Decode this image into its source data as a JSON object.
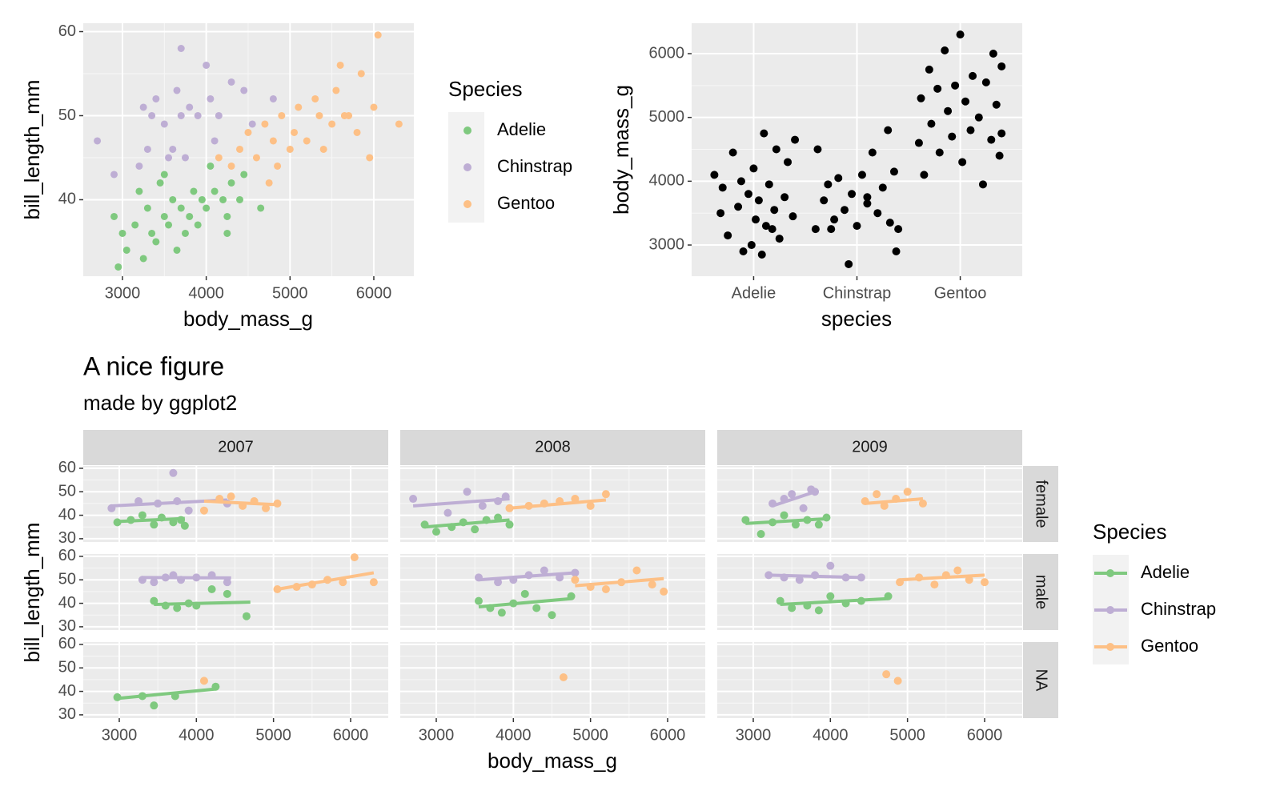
{
  "chart_data": [
    {
      "type": "scatter",
      "xlabel": "body_mass_g",
      "ylabel": "bill_length_mm",
      "legend_title": "Species",
      "xlim": [
        2532,
        6478
      ],
      "ylim": [
        30.9,
        61.0
      ],
      "xticks": [
        3000,
        4000,
        5000,
        6000
      ],
      "yticks": [
        40,
        50,
        60
      ],
      "grid": true,
      "series": [
        {
          "name": "Adelie",
          "color": "#7fc97f",
          "x": [
            2900,
            3000,
            3050,
            3150,
            3200,
            3300,
            3350,
            3400,
            3450,
            3500,
            3550,
            3600,
            3650,
            3700,
            3750,
            3800,
            3850,
            3900,
            3950,
            4000,
            4050,
            4100,
            4200,
            4250,
            4300,
            4400,
            4450,
            4650,
            3500,
            3250,
            2950,
            4250
          ],
          "y": [
            38,
            36,
            34,
            37,
            41,
            39,
            36,
            35,
            42,
            38,
            37,
            40,
            34,
            39,
            36,
            38,
            41,
            37,
            40,
            39,
            44,
            41,
            40,
            38,
            42,
            40,
            43,
            39,
            43,
            33,
            32,
            36
          ]
        },
        {
          "name": "Chinstrap",
          "color": "#beaed4",
          "x": [
            2700,
            2900,
            3250,
            3300,
            3400,
            3500,
            3600,
            3700,
            3700,
            3800,
            3750,
            3900,
            4000,
            4050,
            4150,
            4300,
            4450,
            4800,
            3350,
            3550,
            4550,
            3200,
            3650,
            4100
          ],
          "y": [
            47,
            43,
            51,
            46,
            52,
            49,
            46,
            58,
            50,
            51,
            45,
            50,
            56,
            52,
            50,
            54,
            53,
            52,
            50,
            45,
            49,
            44,
            53,
            47
          ]
        },
        {
          "name": "Gentoo",
          "color": "#fdc086",
          "x": [
            4150,
            4300,
            4400,
            4500,
            4600,
            4700,
            4750,
            4800,
            4900,
            5000,
            5050,
            5100,
            5200,
            5300,
            5350,
            5400,
            5500,
            5550,
            5600,
            5700,
            5800,
            5850,
            5950,
            6000,
            6050,
            6300,
            5650,
            4850
          ],
          "y": [
            45,
            44,
            46,
            48,
            45,
            49,
            42,
            47,
            50,
            46,
            48,
            51,
            47,
            52,
            50,
            46,
            49,
            53,
            56,
            50,
            48,
            55,
            45,
            51,
            59.6,
            49,
            50,
            44
          ]
        }
      ]
    },
    {
      "type": "jitter",
      "xlabel": "species",
      "ylabel": "body_mass_g",
      "categories": [
        "Adelie",
        "Chinstrap",
        "Gentoo"
      ],
      "xlim": [
        0.4,
        3.6
      ],
      "ylim": [
        2511,
        6477
      ],
      "yticks": [
        3000,
        4000,
        5000,
        6000
      ],
      "grid": true,
      "color": "#000000",
      "x": [
        0.62,
        0.7,
        0.75,
        0.8,
        0.85,
        0.9,
        0.95,
        1.0,
        1.02,
        1.05,
        1.08,
        1.1,
        1.12,
        1.15,
        1.2,
        1.22,
        1.25,
        1.3,
        1.33,
        1.38,
        1.4,
        0.68,
        0.88,
        1.18,
        0.98,
        1.6,
        1.62,
        1.68,
        1.72,
        1.78,
        1.82,
        1.88,
        1.92,
        1.95,
        2.0,
        2.05,
        2.1,
        2.15,
        2.2,
        2.25,
        2.3,
        2.32,
        2.36,
        2.4,
        2.38,
        2.1,
        1.75,
        2.6,
        2.62,
        2.65,
        2.7,
        2.72,
        2.78,
        2.8,
        2.85,
        2.88,
        2.92,
        2.95,
        3.0,
        3.02,
        3.05,
        3.1,
        3.12,
        3.18,
        3.22,
        3.25,
        3.3,
        3.32,
        3.35,
        3.38,
        3.4,
        3.4
      ],
      "y": [
        4100,
        3900,
        3150,
        4450,
        3600,
        2900,
        3800,
        4200,
        3400,
        3700,
        2850,
        4750,
        3300,
        3950,
        3550,
        4500,
        3100,
        3750,
        4300,
        3450,
        4650,
        3500,
        4000,
        3250,
        3000,
        3250,
        4500,
        3700,
        3950,
        3400,
        4050,
        3550,
        2700,
        3800,
        3300,
        4100,
        3650,
        4450,
        3500,
        3900,
        4800,
        3350,
        4150,
        3250,
        2900,
        3750,
        3250,
        4600,
        5300,
        4100,
        5750,
        4900,
        5450,
        4450,
        6050,
        5100,
        4700,
        5500,
        6300,
        4300,
        5250,
        4800,
        5650,
        5000,
        3950,
        5550,
        4650,
        6000,
        5200,
        4400,
        5800,
        4750
      ]
    },
    {
      "type": "facet_scatter",
      "title": "A nice figure",
      "subtitle": "made by ggplot2",
      "xlabel": "body_mass_g",
      "ylabel": "bill_length_mm",
      "legend_title": "Species",
      "cols": [
        "2007",
        "2008",
        "2009"
      ],
      "rows": [
        "female",
        "male",
        "NA"
      ],
      "xlim": [
        2533,
        6488
      ],
      "ylim": [
        28.6,
        61.0
      ],
      "xticks": [
        3000,
        4000,
        5000,
        6000
      ],
      "yticks": [
        30,
        40,
        50,
        60
      ],
      "grid": true,
      "series": [
        {
          "name": "Adelie",
          "color": "#7fc97f"
        },
        {
          "name": "Chinstrap",
          "color": "#beaed4"
        },
        {
          "name": "Gentoo",
          "color": "#fdc086"
        }
      ],
      "panels": [
        [
          [
            {
              "x": [
                2975,
                3150,
                3300,
                3450,
                3550,
                3700,
                3800,
                3850
              ],
              "y": [
                37,
                38,
                40,
                36,
                39,
                37,
                38,
                35.5
              ],
              "fit_x": [
                2950,
                3850
              ],
              "fit_y": [
                37.3,
                38.6
              ]
            },
            {
              "x": [
                2900,
                3250,
                3500,
                3700,
                3750,
                3900,
                4400
              ],
              "y": [
                43,
                46,
                45,
                58,
                46,
                42,
                45
              ],
              "fit_x": [
                2900,
                4400
              ],
              "fit_y": [
                44,
                46.5
              ]
            },
            {
              "x": [
                4100,
                4300,
                4450,
                4600,
                4750,
                4900,
                5050
              ],
              "y": [
                42,
                47,
                48,
                44,
                46,
                43,
                45
              ],
              "fit_x": [
                4100,
                5050
              ],
              "fit_y": [
                46,
                44.5
              ]
            }
          ],
          [
            {
              "x": [
                2850,
                3000,
                3200,
                3350,
                3500,
                3650,
                3800,
                3950
              ],
              "y": [
                36,
                33,
                35,
                37,
                34,
                38,
                39,
                36
              ],
              "fit_x": [
                2850,
                3950
              ],
              "fit_y": [
                35,
                38
              ]
            },
            {
              "x": [
                2700,
                3150,
                3400,
                3600,
                3800,
                3900
              ],
              "y": [
                47,
                41,
                50,
                44,
                46,
                48
              ],
              "fit_x": [
                2700,
                3950
              ],
              "fit_y": [
                44,
                47
              ]
            },
            {
              "x": [
                3950,
                4200,
                4400,
                4600,
                4800,
                5000,
                5200
              ],
              "y": [
                43,
                44,
                45,
                46,
                47,
                44,
                49
              ],
              "fit_x": [
                3950,
                5200
              ],
              "fit_y": [
                43,
                46.5
              ]
            }
          ],
          [
            {
              "x": [
                2900,
                3100,
                3250,
                3400,
                3550,
                3700,
                3850,
                3950
              ],
              "y": [
                38,
                32,
                37,
                40,
                36,
                38,
                36,
                39
              ],
              "fit_x": [
                2900,
                3950
              ],
              "fit_y": [
                36.5,
                38.5
              ]
            },
            {
              "x": [
                3250,
                3400,
                3500,
                3650,
                3750,
                3800
              ],
              "y": [
                45,
                47,
                49,
                43,
                51,
                50
              ],
              "fit_x": [
                3250,
                3800
              ],
              "fit_y": [
                44,
                50
              ]
            },
            {
              "x": [
                4450,
                4600,
                4700,
                4850,
                5000,
                5200
              ],
              "y": [
                46,
                49,
                44,
                47,
                50,
                45
              ],
              "fit_x": [
                4450,
                5200
              ],
              "fit_y": [
                45,
                47
              ]
            }
          ]
        ],
        [
          [
            {
              "x": [
                3450,
                3600,
                3750,
                3900,
                4000,
                4200,
                4400,
                4650
              ],
              "y": [
                41,
                39,
                38,
                40,
                39,
                46,
                44,
                34.5
              ],
              "fit_x": [
                3450,
                4700
              ],
              "fit_y": [
                39.5,
                40.5
              ]
            },
            {
              "x": [
                3300,
                3450,
                3600,
                3700,
                3800,
                4000,
                4200,
                4400
              ],
              "y": [
                50,
                49,
                51,
                52,
                50,
                51,
                52,
                49
              ],
              "fit_x": [
                3300,
                4450
              ],
              "fit_y": [
                51,
                50.8
              ]
            },
            {
              "x": [
                5050,
                5300,
                5500,
                5700,
                5900,
                6050,
                6300
              ],
              "y": [
                46,
                47,
                48,
                50,
                49,
                59.6,
                49
              ],
              "fit_x": [
                5050,
                6300
              ],
              "fit_y": [
                46,
                53
              ]
            }
          ],
          [
            {
              "x": [
                3550,
                3700,
                3850,
                4000,
                4150,
                4300,
                4500,
                4750
              ],
              "y": [
                41,
                38,
                36,
                40,
                44,
                38,
                35,
                43
              ],
              "fit_x": [
                3550,
                4750
              ],
              "fit_y": [
                38.5,
                42
              ]
            },
            {
              "x": [
                3550,
                3800,
                4000,
                4200,
                4400,
                4600,
                4800
              ],
              "y": [
                51,
                49,
                50,
                52,
                54,
                51,
                53
              ],
              "fit_x": [
                3550,
                4800
              ],
              "fit_y": [
                50,
                53
              ]
            },
            {
              "x": [
                4800,
                5000,
                5200,
                5400,
                5600,
                5800,
                5950
              ],
              "y": [
                50,
                47,
                46,
                49,
                54,
                48,
                45
              ],
              "fit_x": [
                4800,
                5950
              ],
              "fit_y": [
                47.5,
                50.5
              ]
            }
          ],
          [
            {
              "x": [
                3350,
                3500,
                3700,
                3850,
                4000,
                4200,
                4400,
                4750
              ],
              "y": [
                41,
                38,
                39,
                37,
                43,
                40,
                41,
                43
              ],
              "fit_x": [
                3350,
                4750
              ],
              "fit_y": [
                39.5,
                42
              ]
            },
            {
              "x": [
                3200,
                3400,
                3600,
                3800,
                4000,
                4200,
                4400
              ],
              "y": [
                52,
                51,
                50,
                52,
                56,
                51,
                51
              ],
              "fit_x": [
                3200,
                4400
              ],
              "fit_y": [
                52,
                51
              ]
            },
            {
              "x": [
                4900,
                5150,
                5350,
                5500,
                5650,
                5800,
                6000
              ],
              "y": [
                49,
                51,
                48,
                52,
                54,
                50,
                49
              ],
              "fit_x": [
                4900,
                6000
              ],
              "fit_y": [
                50,
                52
              ]
            }
          ]
        ],
        [
          [
            {
              "x": [
                2975,
                3300,
                3450,
                3725,
                4250
              ],
              "y": [
                37.5,
                38,
                34,
                38,
                42
              ],
              "fit_x": [
                2975,
                4250
              ],
              "fit_y": [
                37,
                41
              ]
            },
            {
              "x": [],
              "y": [],
              "fit_x": [],
              "fit_y": []
            },
            {
              "x": [
                4100
              ],
              "y": [
                44.5
              ],
              "fit_x": [],
              "fit_y": []
            }
          ],
          [
            {
              "x": [],
              "y": [],
              "fit_x": [],
              "fit_y": []
            },
            {
              "x": [],
              "y": [],
              "fit_x": [],
              "fit_y": []
            },
            {
              "x": [
                4650
              ],
              "y": [
                46
              ],
              "fit_x": [],
              "fit_y": []
            }
          ],
          [
            {
              "x": [],
              "y": [],
              "fit_x": [],
              "fit_y": []
            },
            {
              "x": [],
              "y": [],
              "fit_x": [],
              "fit_y": []
            },
            {
              "x": [
                4725,
                4875
              ],
              "y": [
                47.3,
                44.5
              ],
              "fit_x": [],
              "fit_y": []
            }
          ]
        ]
      ]
    }
  ]
}
